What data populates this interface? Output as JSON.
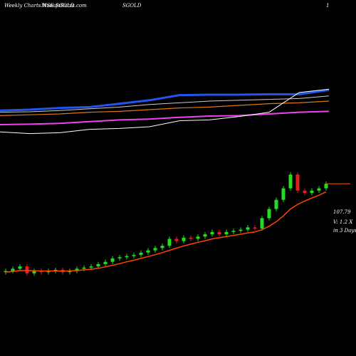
{
  "chart_data": {
    "type": "candlestick",
    "title": "Weekly Charts NSE SGOLD",
    "source": "MunafaSutra.com",
    "symbol": "SGOLD",
    "corner_label": "1",
    "last_price": "107.79",
    "volume_note": "V: 1.2 X",
    "period_note": "in 3 Days",
    "up_color": "#22dd22",
    "down_color": "#e02020",
    "ylim": [
      33,
      188
    ],
    "open": [
      69.5,
      70,
      71,
      72,
      69,
      70,
      69.5,
      70,
      70.5,
      69.5,
      70,
      71,
      71.5,
      72,
      73,
      74,
      75.5,
      76,
      76.5,
      77,
      78,
      79,
      80,
      81,
      84,
      83,
      84.5,
      84,
      85,
      86,
      87,
      86,
      87,
      87.5,
      88,
      89,
      88.5,
      93,
      97,
      101,
      106,
      112,
      105,
      104,
      105,
      106
    ],
    "high": [
      71,
      72,
      73,
      73,
      71,
      71,
      71,
      71.5,
      71.5,
      71,
      72,
      72.5,
      73,
      74,
      75,
      76.5,
      77,
      77.5,
      78,
      79,
      80,
      81,
      82,
      85,
      85,
      85.5,
      85.5,
      86,
      87,
      88,
      88,
      88,
      88.5,
      89,
      90,
      90,
      94,
      98,
      102,
      107,
      113,
      113,
      106,
      106,
      107,
      109
    ],
    "low": [
      68.5,
      69,
      70,
      68,
      68,
      68.5,
      68.5,
      69,
      68.5,
      68.5,
      69,
      70,
      70.5,
      71,
      72,
      73,
      74.5,
      75,
      75.5,
      76,
      77,
      78,
      79,
      80,
      82,
      82,
      83,
      83,
      84,
      85,
      85,
      85,
      86,
      86.5,
      87,
      87.5,
      87.5,
      92,
      96,
      100,
      105,
      104,
      103,
      103,
      104,
      105
    ],
    "close": [
      70,
      71,
      72,
      69,
      70,
      69.5,
      70,
      70.5,
      69.5,
      70,
      71,
      71.5,
      72,
      73,
      74,
      75.5,
      76,
      76.5,
      77,
      78,
      79,
      80,
      81,
      84,
      83,
      84.5,
      84,
      85,
      86,
      87,
      86,
      87,
      87.5,
      88,
      89,
      88.5,
      93,
      97,
      101,
      106,
      112,
      105,
      104,
      105,
      106,
      108
    ],
    "moving_average": {
      "color": "#ff4400",
      "values": [
        69.5,
        69.8,
        70.2,
        70.2,
        70.1,
        70,
        70,
        70,
        70,
        70,
        70.2,
        70.5,
        70.8,
        71.2,
        71.8,
        72.5,
        73.2,
        74,
        74.7,
        75.5,
        76.3,
        77.1,
        78,
        79,
        80,
        80.9,
        81.7,
        82.5,
        83.2,
        84,
        84.5,
        85,
        85.5,
        86,
        86.6,
        87,
        88,
        89.5,
        91.5,
        94,
        97,
        99,
        100.5,
        101.8,
        103,
        104.5
      ]
    },
    "upper_panel": {
      "ylim": [
        0,
        100
      ],
      "series": [
        {
          "color": "#2255ee",
          "width": 3,
          "values": [
            54,
            55,
            57,
            58,
            62,
            66,
            72,
            72.5,
            72.5,
            73,
            73,
            78
          ]
        },
        {
          "color": "#cccccc",
          "width": 1,
          "values": [
            52,
            52.5,
            54,
            56,
            58,
            61,
            63,
            65,
            66,
            67,
            68,
            71
          ]
        },
        {
          "color": "#dd7711",
          "width": 1.2,
          "values": [
            48,
            49,
            50,
            52,
            53,
            55,
            57,
            58,
            60,
            62,
            63,
            65
          ]
        },
        {
          "color": "#ee44ee",
          "width": 2,
          "values": [
            37.5,
            38,
            39,
            41,
            43,
            44,
            46,
            47.5,
            48,
            50,
            52,
            53
          ]
        },
        {
          "color": "#ffffff",
          "width": 1,
          "values": [
            29,
            27,
            28,
            32,
            33,
            35,
            42,
            43,
            47,
            52,
            75,
            79
          ]
        }
      ]
    }
  }
}
